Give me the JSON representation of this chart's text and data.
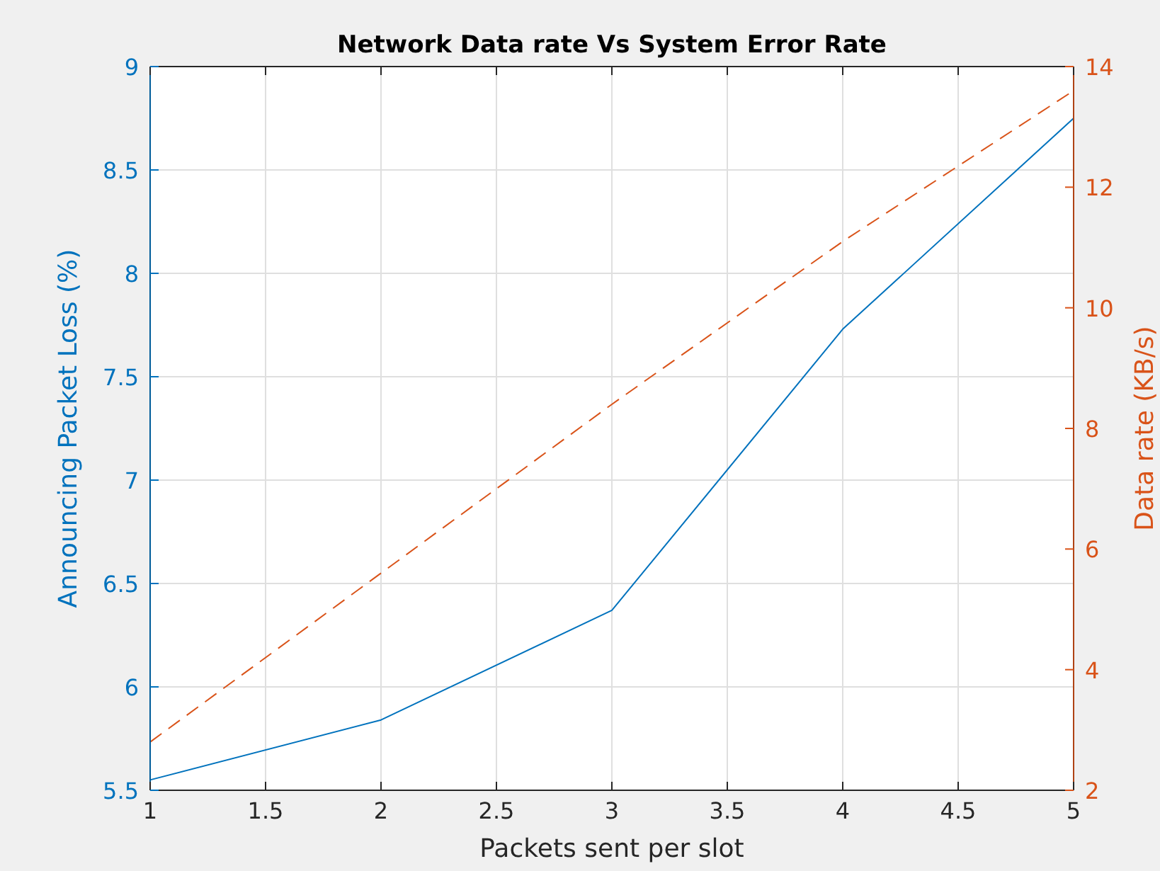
{
  "chart_data": {
    "type": "line",
    "title": "Network Data rate Vs System Error Rate",
    "xlabel": "Packets sent per slot",
    "ylabel": "Announcing Packet Loss (%)",
    "y2label": "Data rate (KB/s)",
    "x": [
      1,
      2,
      3,
      4,
      5
    ],
    "xlim": [
      1,
      5
    ],
    "xticks": [
      1,
      1.5,
      2,
      2.5,
      3,
      3.5,
      4,
      4.5,
      5
    ],
    "ylim": [
      5.5,
      9
    ],
    "yticks": [
      5.5,
      6,
      6.5,
      7,
      7.5,
      8,
      8.5,
      9
    ],
    "y2lim": [
      2,
      14
    ],
    "y2ticks": [
      2,
      4,
      6,
      8,
      10,
      12,
      14
    ],
    "grid": true,
    "series": [
      {
        "color": "#0072bd",
        "values": [
          5.55,
          5.84,
          6.37,
          7.73,
          8.75
        ],
        "line_style": "solid"
      },
      {
        "color": "#d95319",
        "values": [
          2.8,
          5.6,
          8.4,
          11.1,
          13.6
        ],
        "axis": "y2",
        "line_style": "dashed"
      }
    ]
  }
}
